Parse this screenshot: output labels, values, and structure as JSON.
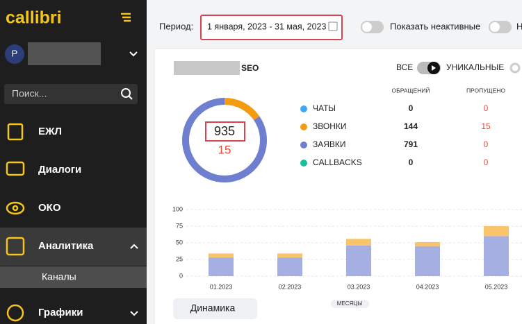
{
  "sidebar": {
    "logo": "callibri",
    "avatar": "Р",
    "search_placeholder": "Поиск...",
    "menu": [
      "ЕЖЛ",
      "Диалоги",
      "ОКО",
      "Аналитика",
      "Графики"
    ],
    "submenu": [
      "Каналы"
    ]
  },
  "toolbar": {
    "period_label": "Период:",
    "period_value": "1 января, 2023 - 31 мая, 2023",
    "toggle_label": "Показать неактивные",
    "cut_label": "Н"
  },
  "widget": {
    "title": "SEO",
    "mode_all": "ВСЕ",
    "mode_unique": "УНИКАЛЬНЫЕ",
    "columns": [
      "ОБРАЩЕНИЙ",
      "ПРОПУЩЕНО"
    ],
    "rows": [
      {
        "name": "ЧАТЫ",
        "color": "#3fa9f5",
        "calls": 0,
        "missed": 0
      },
      {
        "name": "ЗВОНКИ",
        "color": "#f39c12",
        "calls": 144,
        "missed": 15
      },
      {
        "name": "ЗАЯВКИ",
        "color": "#6f7fcf",
        "calls": 791,
        "missed": 0
      },
      {
        "name": "CALLBACKS",
        "color": "#1abc9c",
        "calls": 0,
        "missed": 0
      }
    ],
    "total": 935,
    "total_missed": 15,
    "chart": {
      "type": "bar",
      "stacked": true,
      "categories": [
        "01.2023",
        "02.2023",
        "03.2023",
        "04.2023",
        "05.2023"
      ],
      "series": [
        {
          "color": "#a6afe2",
          "values": [
            28,
            28,
            46,
            45,
            60
          ]
        },
        {
          "color": "#f9c46b",
          "values": [
            6,
            6,
            10,
            6,
            15
          ]
        }
      ],
      "ylim": [
        0,
        100
      ],
      "yticks": [
        0,
        25,
        50,
        75,
        100
      ],
      "grid": true,
      "x_label": "МЕСЯЦЫ"
    },
    "button": "Динамика"
  }
}
